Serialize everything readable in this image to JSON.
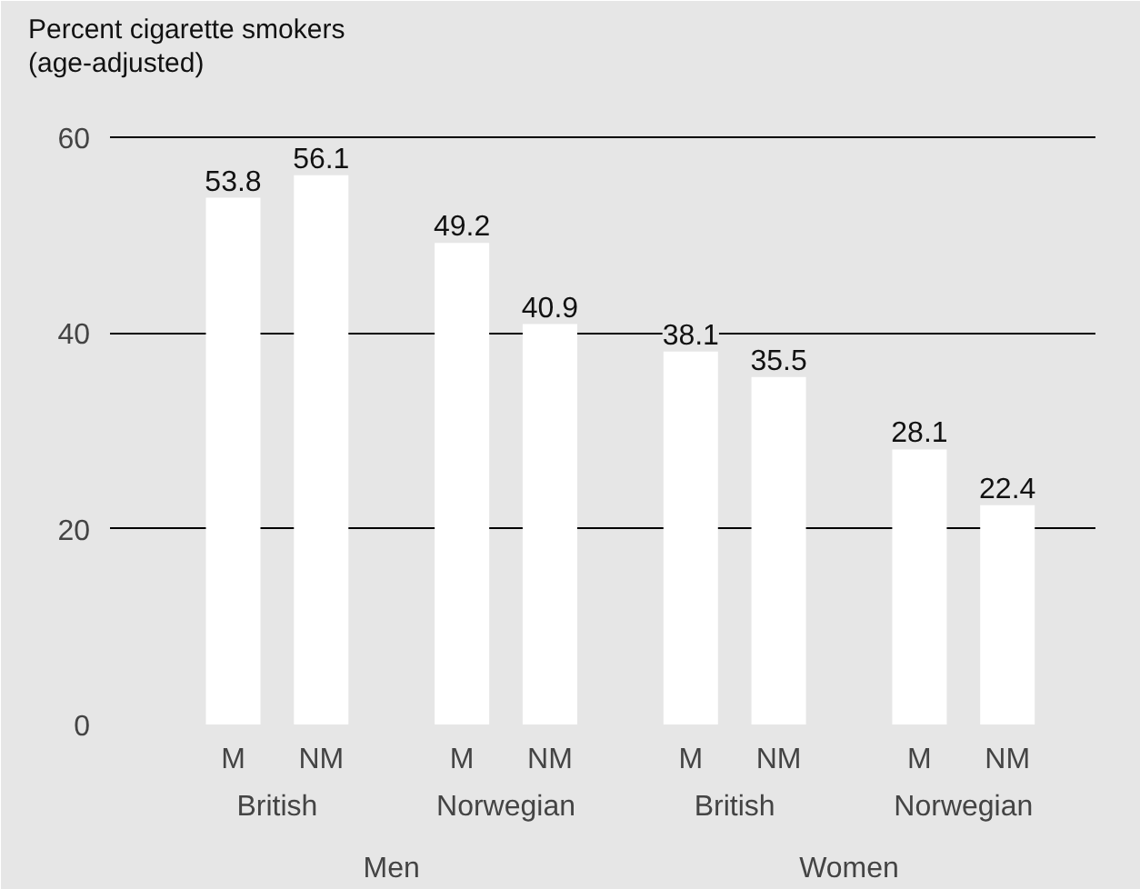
{
  "chart_data": {
    "type": "bar",
    "ylabel": "Percent cigarette smokers\n(age-adjusted)",
    "categories": [
      "M",
      "NM",
      "M",
      "NM",
      "M",
      "NM",
      "M",
      "NM"
    ],
    "values": [
      53.8,
      56.1,
      49.2,
      40.9,
      38.1,
      35.5,
      28.1,
      22.4
    ],
    "color": "#ffffff",
    "data_labels": true,
    "ylim": [
      0,
      65
    ],
    "yticks": [
      0,
      20,
      40,
      60
    ],
    "grid": "y",
    "annotations": [
      "British",
      "Norwegian",
      "British",
      "Norwegian",
      "Men",
      "Women"
    ]
  }
}
